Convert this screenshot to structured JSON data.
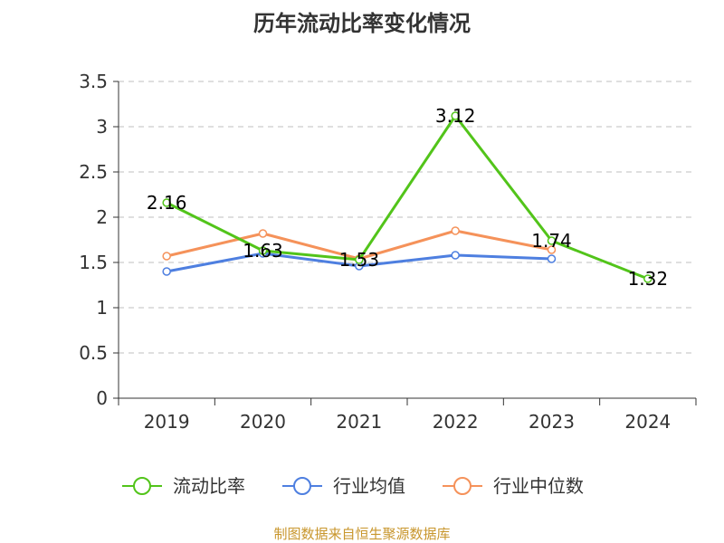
{
  "chart_data": {
    "type": "line",
    "title": "历年流动比率变化情况",
    "categories": [
      "2019",
      "2020",
      "2021",
      "2022",
      "2023",
      "2024"
    ],
    "ylim": [
      0,
      3.5
    ],
    "yticks": [
      "0",
      "0.5",
      "1",
      "1.5",
      "2",
      "2.5",
      "3",
      "3.5"
    ],
    "grid": true,
    "legend_position": "bottom",
    "series": [
      {
        "name": "流动比率",
        "color": "#52c41a",
        "values": [
          2.16,
          1.63,
          1.53,
          3.12,
          1.74,
          1.32
        ],
        "labels": [
          "2.16",
          "1.63",
          "1.53",
          "3.12",
          "1.74",
          "1.32"
        ]
      },
      {
        "name": "行业均值",
        "color": "#4e7fe0",
        "values": [
          1.4,
          1.6,
          1.46,
          1.58,
          1.54,
          null
        ]
      },
      {
        "name": "行业中位数",
        "color": "#f5925a",
        "values": [
          1.57,
          1.82,
          1.54,
          1.85,
          1.64,
          null
        ]
      }
    ]
  },
  "footer": {
    "source": "制图数据来自恒生聚源数据库"
  }
}
